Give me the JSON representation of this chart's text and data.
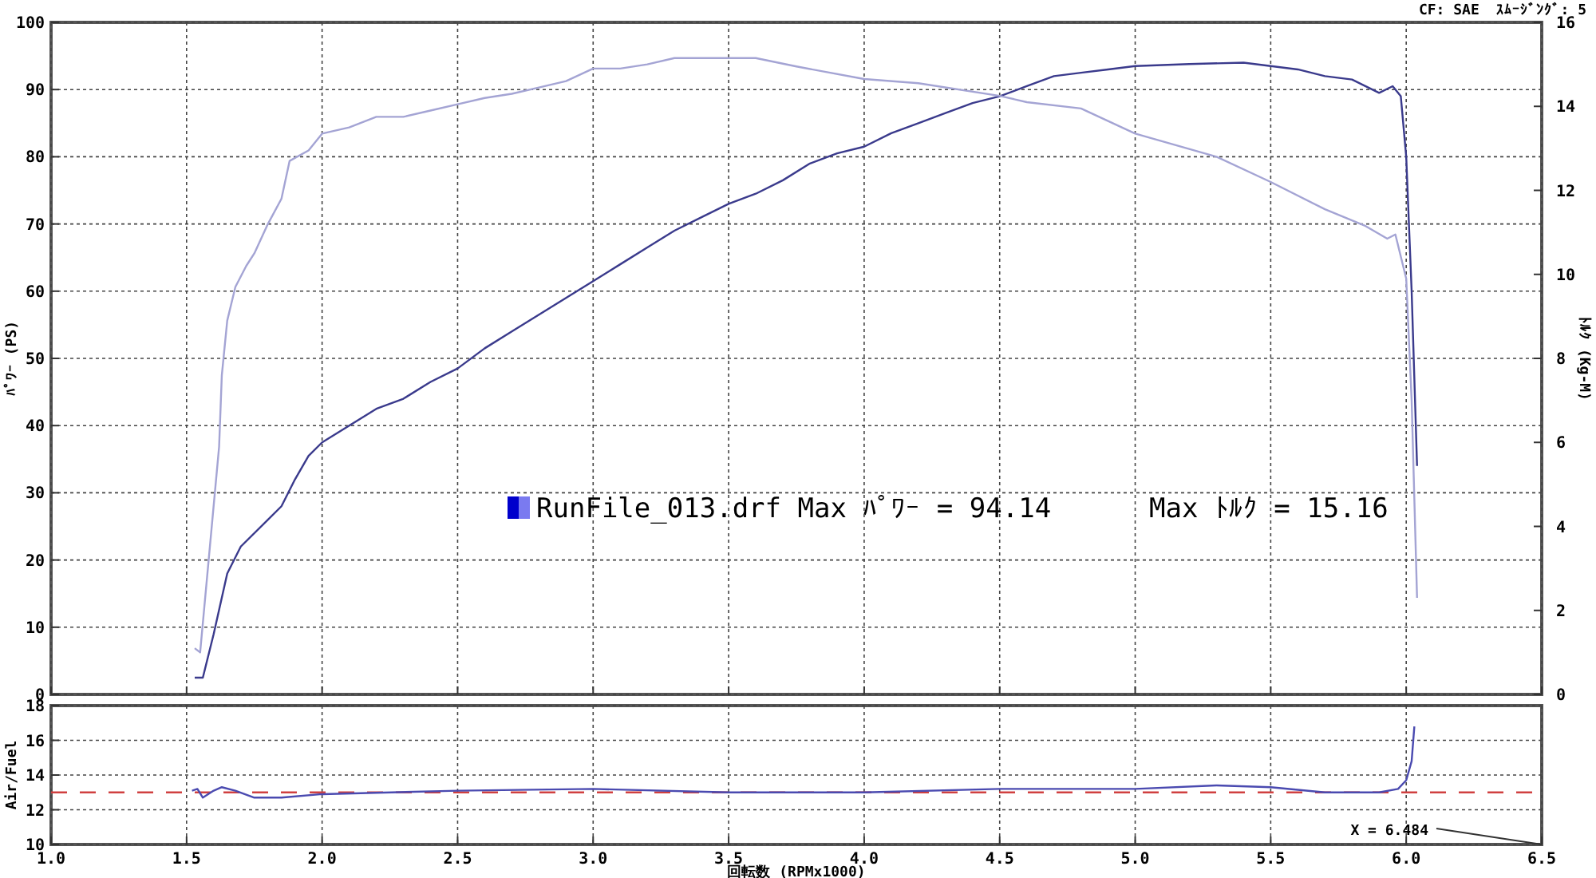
{
  "chart_data": [
    {
      "type": "line",
      "ylabel": "ﾊﾟﾜｰ (PS)",
      "y2label": "ﾄﾙｸ (Kg-M)",
      "annotations": [
        "CF: SAE  ｽﾑｰｼﾞﾝｸﾞ: 5",
        "RunFile_013.drf Max ﾊﾟﾜｰ = 94.14      Max ﾄﾙｸ = 15.16"
      ],
      "xlim": [
        1.0,
        6.5
      ],
      "xticks": [
        {
          "value": 1.0,
          "label": null
        },
        {
          "value": 1.5,
          "label": null
        },
        {
          "value": 2.0,
          "label": null
        },
        {
          "value": 2.5,
          "label": null
        },
        {
          "value": 3.0,
          "label": null
        },
        {
          "value": 3.5,
          "label": null
        },
        {
          "value": 4.0,
          "label": null
        },
        {
          "value": 4.5,
          "label": null
        },
        {
          "value": 5.0,
          "label": null
        },
        {
          "value": 5.5,
          "label": null
        },
        {
          "value": 6.0,
          "label": null
        },
        {
          "value": 6.5,
          "label": null
        }
      ],
      "ylim": [
        0,
        100
      ],
      "yticks": [
        0,
        10,
        20,
        30,
        40,
        50,
        60,
        70,
        80,
        90,
        100
      ],
      "y2lim": [
        0,
        16
      ],
      "y2ticks": [
        0,
        2,
        4,
        6,
        8,
        10,
        12,
        14,
        16
      ],
      "grid": true,
      "tick_labels": "y",
      "line_style": "solid",
      "marker": "none",
      "series": [
        {
          "color": "#3a3a8c",
          "axis": "y",
          "x": [
            1.53,
            1.56,
            1.6,
            1.65,
            1.7,
            1.8,
            1.85,
            1.9,
            1.95,
            2.0,
            2.1,
            2.2,
            2.3,
            2.4,
            2.5,
            2.6,
            2.7,
            2.8,
            2.9,
            3.0,
            3.1,
            3.2,
            3.3,
            3.4,
            3.5,
            3.6,
            3.7,
            3.8,
            3.9,
            4.0,
            4.1,
            4.2,
            4.3,
            4.4,
            4.5,
            4.6,
            4.7,
            4.8,
            4.9,
            5.0,
            5.2,
            5.4,
            5.5,
            5.6,
            5.7,
            5.8,
            5.9,
            5.95,
            5.98,
            6.0,
            6.02,
            6.04
          ],
          "values": [
            2.5,
            2.5,
            9,
            18,
            22,
            26,
            28,
            32,
            35.5,
            37.5,
            40,
            42.5,
            44,
            46.5,
            48.5,
            51.5,
            54,
            56.5,
            59,
            61.5,
            64,
            66.5,
            69,
            71,
            73,
            74.5,
            76.5,
            79,
            80.5,
            81.5,
            83.5,
            85,
            86.5,
            88,
            89,
            90.5,
            92,
            92.5,
            93,
            93.5,
            93.8,
            94,
            93.5,
            93,
            92,
            91.5,
            89.5,
            90.5,
            89,
            80,
            60,
            34
          ]
        },
        {
          "color": "#a4a4d4",
          "axis": "y2",
          "x": [
            1.53,
            1.55,
            1.6,
            1.62,
            1.63,
            1.65,
            1.68,
            1.72,
            1.75,
            1.8,
            1.85,
            1.88,
            1.95,
            2.0,
            2.1,
            2.2,
            2.3,
            2.4,
            2.5,
            2.6,
            2.7,
            2.8,
            2.9,
            3.0,
            3.1,
            3.2,
            3.3,
            3.5,
            3.6,
            3.75,
            4.0,
            4.2,
            4.5,
            4.6,
            4.8,
            5.0,
            5.3,
            5.5,
            5.7,
            5.85,
            5.93,
            5.96,
            6.0,
            6.02,
            6.04
          ],
          "values": [
            1.1,
            1.0,
            4.5,
            5.9,
            7.6,
            8.9,
            9.7,
            10.2,
            10.5,
            11.2,
            11.8,
            12.7,
            12.95,
            13.35,
            13.5,
            13.75,
            13.75,
            13.9,
            14.05,
            14.2,
            14.3,
            14.45,
            14.6,
            14.9,
            14.9,
            15.0,
            15.15,
            15.15,
            15.15,
            14.95,
            14.65,
            14.55,
            14.25,
            14.1,
            13.95,
            13.35,
            12.8,
            12.2,
            11.55,
            11.15,
            10.85,
            10.95,
            9.9,
            7,
            2.3
          ]
        }
      ]
    },
    {
      "type": "line",
      "xlabel": "回転数 (RPMx1000)",
      "ylabel": "Air/Fuel",
      "annotations": [
        "X = 6.484"
      ],
      "xlim": [
        1.0,
        6.5
      ],
      "xticks": [
        {
          "value": 1.0,
          "label": "1.0"
        },
        {
          "value": 1.5,
          "label": "1.5"
        },
        {
          "value": 2.0,
          "label": "2.0"
        },
        {
          "value": 2.5,
          "label": "2.5"
        },
        {
          "value": 3.0,
          "label": "3.0"
        },
        {
          "value": 3.5,
          "label": "3.5"
        },
        {
          "value": 4.0,
          "label": "4.0"
        },
        {
          "value": 4.5,
          "label": "4.5"
        },
        {
          "value": 5.0,
          "label": "5.0"
        },
        {
          "value": 5.5,
          "label": "5.5"
        },
        {
          "value": 6.0,
          "label": "6.0"
        },
        {
          "value": 6.5,
          "label": "6.5"
        }
      ],
      "ylim": [
        10,
        18
      ],
      "yticks": [
        10,
        12,
        14,
        16,
        18
      ],
      "grid": true,
      "line_style": "solid",
      "marker": "none",
      "ref_lines": [
        {
          "axis": "y",
          "value": 13,
          "color": "#d04040",
          "line_style": "dashed"
        }
      ],
      "series": [
        {
          "color": "#4a4ab0",
          "x": [
            1.52,
            1.54,
            1.56,
            1.6,
            1.63,
            1.68,
            1.75,
            1.85,
            2.0,
            2.5,
            3.0,
            3.5,
            4.0,
            4.5,
            5.0,
            5.3,
            5.5,
            5.7,
            5.9,
            5.97,
            6.0,
            6.02,
            6.03
          ],
          "values": [
            13.1,
            13.2,
            12.7,
            13.1,
            13.3,
            13.1,
            12.7,
            12.7,
            12.9,
            13.1,
            13.2,
            13.0,
            13.0,
            13.2,
            13.2,
            13.4,
            13.3,
            13.0,
            13.0,
            13.2,
            13.7,
            14.8,
            16.8
          ]
        }
      ]
    }
  ]
}
